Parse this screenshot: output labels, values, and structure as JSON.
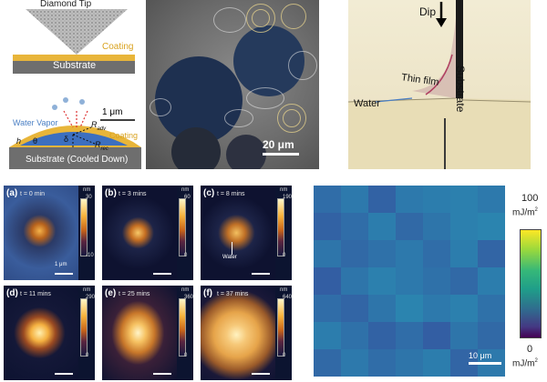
{
  "schematic": {
    "diamond_tip": "Diamond Tip",
    "coating_top": "Coating",
    "substrate_top": "Substrate",
    "scale_label": "1 μm",
    "water_vapor": "Water Vapor",
    "coating_bottom": "Coating",
    "r_adv": "R",
    "r_adv_sub": "adv",
    "r_rec": "R",
    "r_rec_sub": "rec",
    "delta": "δ",
    "theta": "θ",
    "h": "h",
    "substrate_bottom": "Substrate (Cooled Down)"
  },
  "micrograph": {
    "scale_label": "20 μm"
  },
  "dip": {
    "dip_label": "Dip",
    "substrate_label": "Substrate",
    "thin_film_label": "Thin film",
    "water_label": "Water"
  },
  "afm": {
    "unit": "nm",
    "scale_label": "1 μm",
    "water_label": "Water",
    "panels": [
      {
        "letter": "(a)",
        "time": "t = 0 min",
        "max": "30",
        "min": "-10"
      },
      {
        "letter": "(b)",
        "time": "t = 3 mins",
        "max": "60",
        "min": "0"
      },
      {
        "letter": "(c)",
        "time": "t = 8 mins",
        "max": "190",
        "min": "0"
      },
      {
        "letter": "(d)",
        "time": "t = 11 mins",
        "max": "290",
        "min": "0"
      },
      {
        "letter": "(e)",
        "time": "t = 25 mins",
        "max": "360",
        "min": "0"
      },
      {
        "letter": "(f)",
        "time": "t = 37 mins",
        "max": "640",
        "min": "0"
      }
    ]
  },
  "heatmap": {
    "max_label": "100",
    "min_label": "0",
    "unit": "mJ/m",
    "unit_sup": "2",
    "scale_label": "10 μm",
    "colors": {
      "low": "#3a63a8",
      "mid": "#2d7fb0",
      "high": "#2a9aa8"
    },
    "values": [
      [
        34,
        37,
        31,
        37,
        38,
        39,
        37
      ],
      [
        31,
        34,
        38,
        33,
        36,
        39,
        40
      ],
      [
        36,
        33,
        35,
        37,
        34,
        38,
        32
      ],
      [
        30,
        36,
        39,
        37,
        35,
        33,
        38
      ],
      [
        34,
        32,
        36,
        40,
        37,
        39,
        35
      ],
      [
        38,
        35,
        31,
        34,
        30,
        36,
        33
      ],
      [
        33,
        37,
        34,
        36,
        38,
        32,
        37
      ]
    ]
  }
}
